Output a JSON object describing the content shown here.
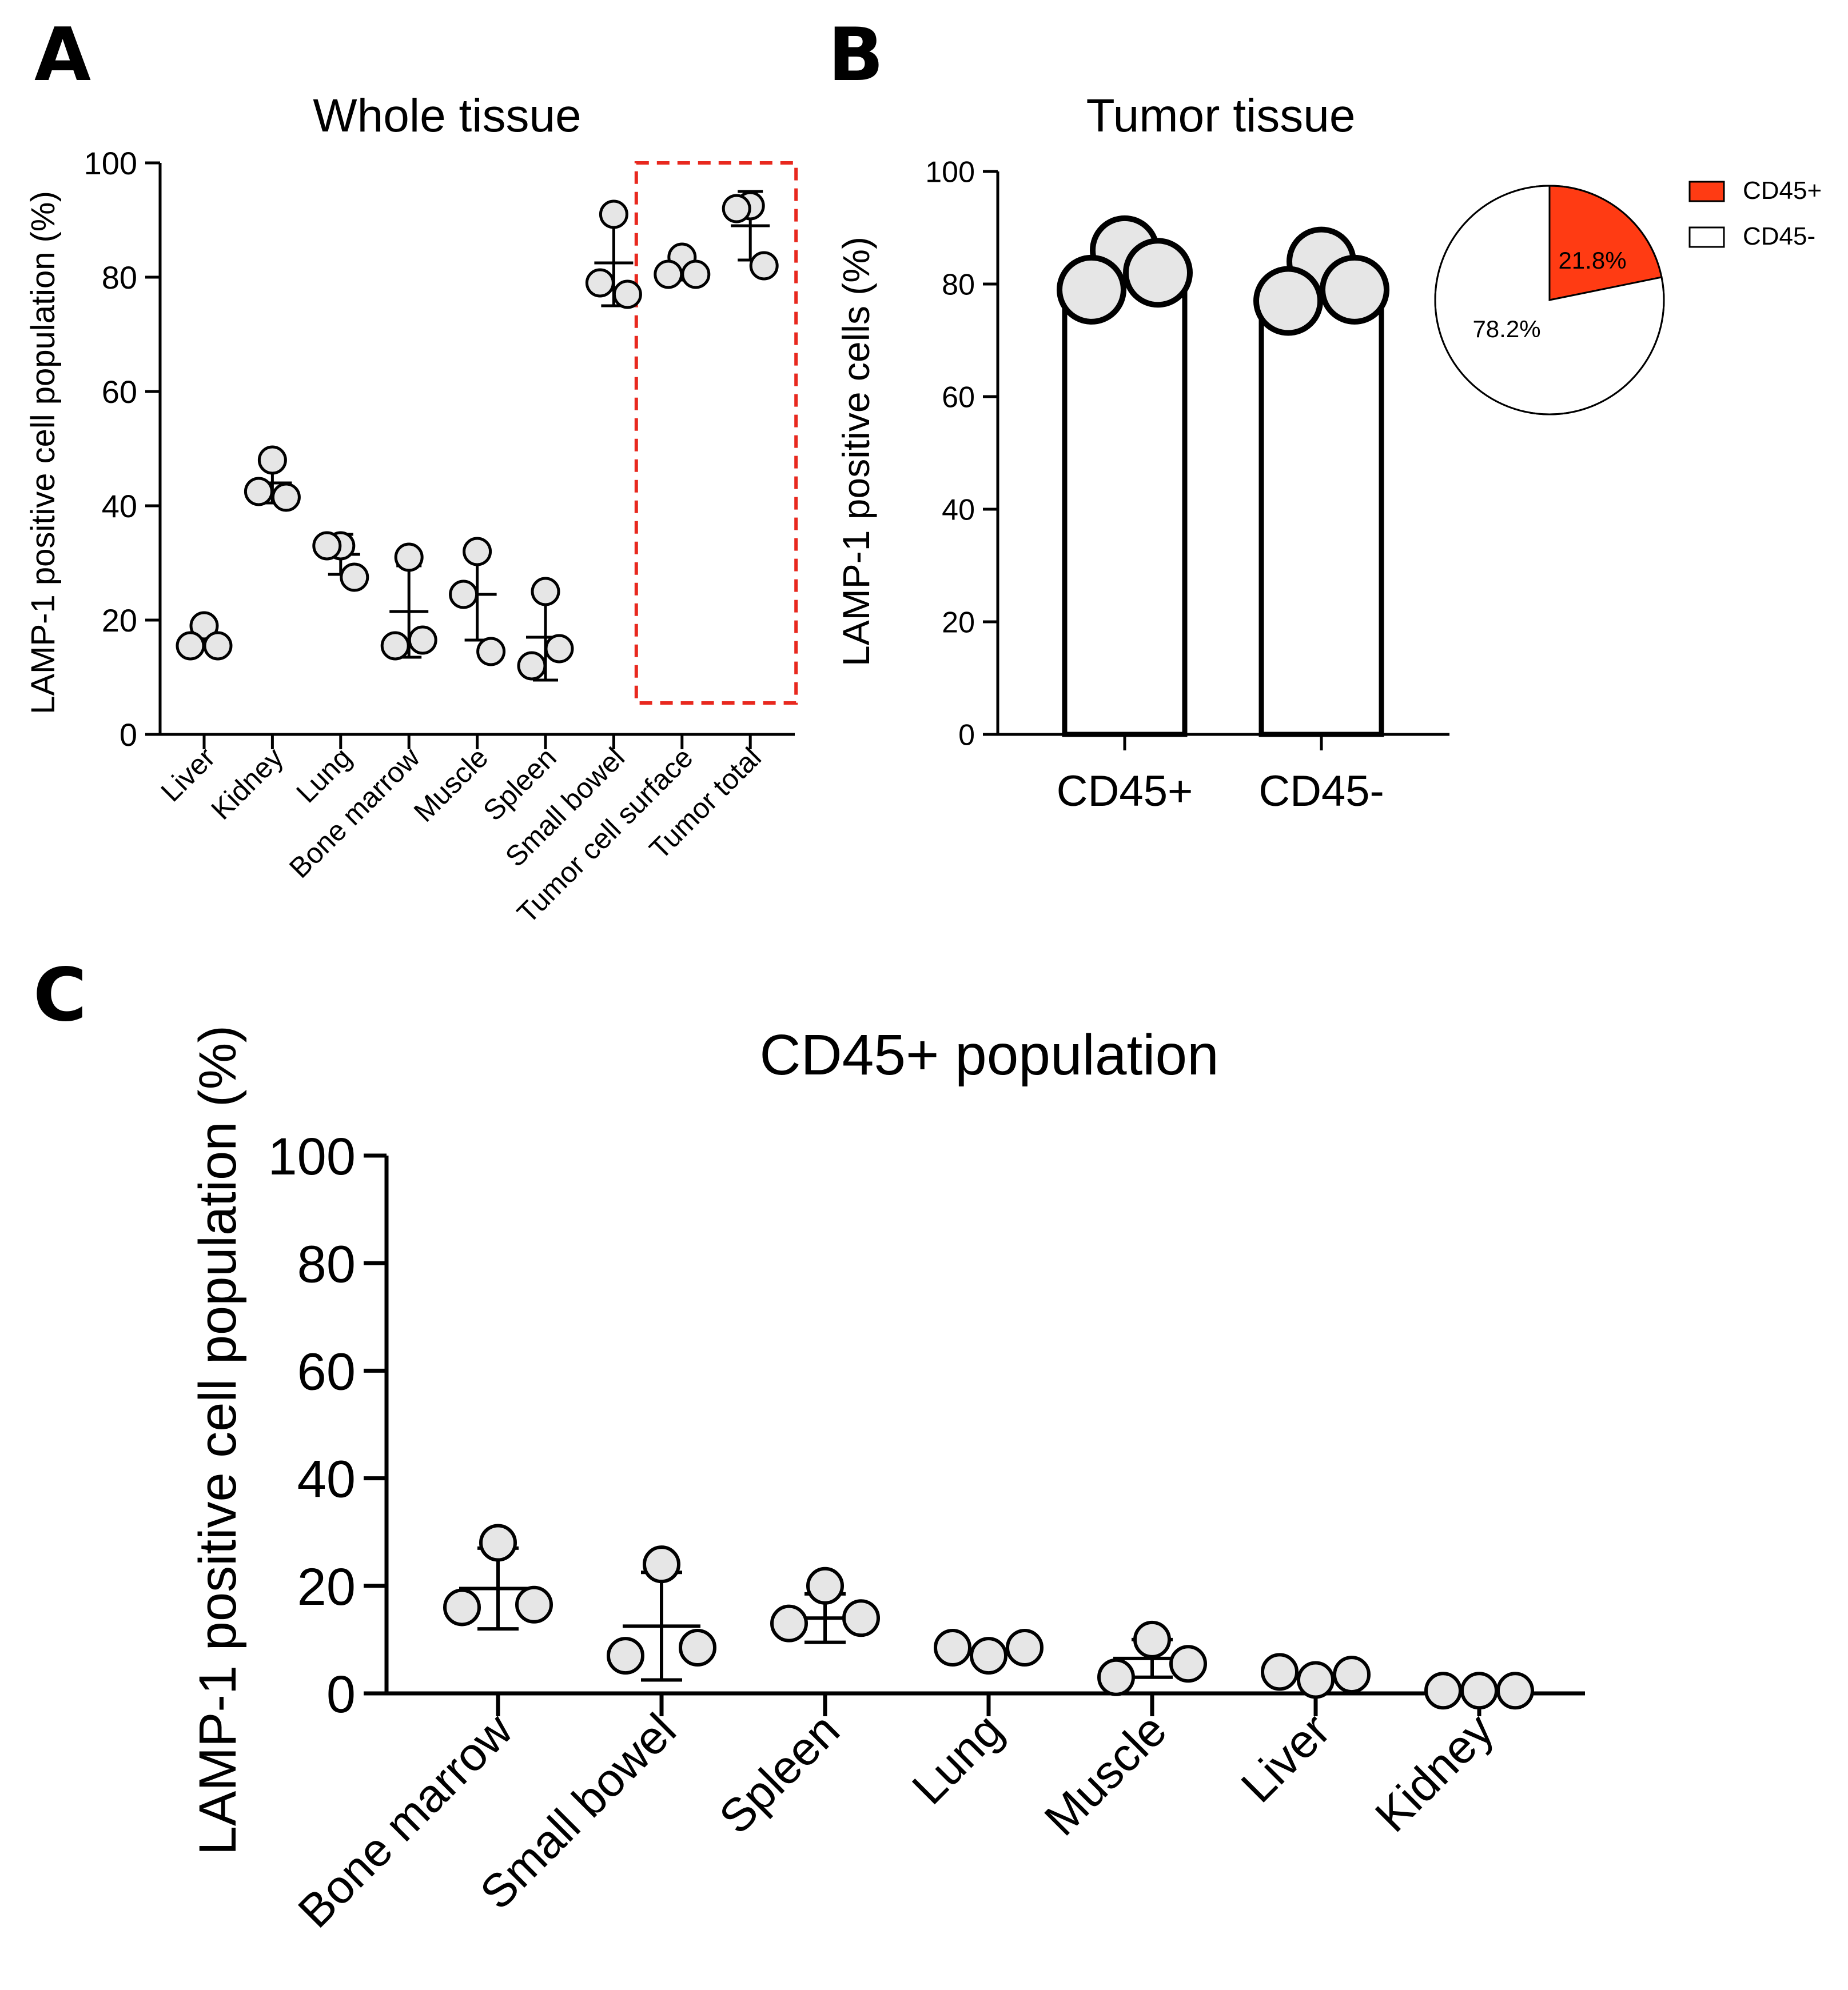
{
  "colors": {
    "axis": "#000000",
    "dot_fill": "#e6e6e6",
    "dot_stroke": "#000000",
    "highlight_box": "#e8281e",
    "pie_cd45_pos": "#ff3b13",
    "pie_cd45_neg": "#ffffff"
  },
  "chart_data": [
    {
      "panel": "A",
      "type": "scatter",
      "title": "Whole tissue",
      "ylabel": "LAMP-1 positive cell population (%)",
      "xlabel": "",
      "ylim": [
        0,
        100
      ],
      "yticks": [
        "0",
        "20",
        "40",
        "60",
        "80",
        "100"
      ],
      "categories": [
        "Liver",
        "Kidney",
        "Lung",
        "Bone marrow",
        "Muscle",
        "Spleen",
        "Small bowel",
        "Tumor cell surface",
        "Tumor total"
      ],
      "points": [
        [
          19,
          15.5,
          15.5
        ],
        [
          48,
          42.5,
          41.5
        ],
        [
          33,
          33,
          27.5
        ],
        [
          31,
          15.5,
          16.5
        ],
        [
          32,
          24.5,
          14.5
        ],
        [
          25,
          12,
          15
        ],
        [
          91,
          79,
          77
        ],
        [
          83.5,
          80.5,
          80.5
        ],
        [
          92.5,
          92,
          82
        ]
      ],
      "mean": [
        17,
        44,
        31.5,
        21.5,
        24.5,
        17,
        82.5,
        81.5,
        89
      ],
      "sd": [
        2,
        3.5,
        3.5,
        8,
        8,
        7.5,
        7.5,
        2,
        6
      ],
      "highlight": [
        "Tumor cell surface",
        "Tumor total"
      ]
    },
    {
      "panel": "B",
      "type": "bar",
      "title": "Tumor tissue",
      "ylabel": "LAMP-1 positive cells (%)",
      "xlabel": "",
      "ylim": [
        0,
        100
      ],
      "yticks": [
        "0",
        "20",
        "40",
        "60",
        "80",
        "100"
      ],
      "categories": [
        "CD45+",
        "CD45-"
      ],
      "values": [
        81,
        79
      ],
      "points": [
        [
          86,
          79,
          82
        ],
        [
          84,
          77,
          79
        ]
      ]
    },
    {
      "panel": "B-inset",
      "type": "pie",
      "labels": [
        "CD45+",
        "CD45-"
      ],
      "values": [
        21.8,
        78.2
      ],
      "value_labels": [
        "21.8%",
        "78.2%"
      ],
      "legend": [
        "CD45+",
        "CD45-"
      ],
      "legend_position": "right"
    },
    {
      "panel": "C",
      "type": "scatter",
      "title": "CD45+ population",
      "ylabel": "LAMP-1 positive cell population (%)",
      "xlabel": "",
      "ylim": [
        0,
        100
      ],
      "yticks": [
        "0",
        "20",
        "40",
        "60",
        "80",
        "100"
      ],
      "categories": [
        "Bone marrow",
        "Small bowel",
        "Spleen",
        "Lung",
        "Muscle",
        "Liver",
        "Kidney"
      ],
      "points": [
        [
          28,
          16,
          16.5
        ],
        [
          24,
          7,
          8.5
        ],
        [
          20,
          13,
          14
        ],
        [
          7,
          8.5,
          8.5
        ],
        [
          10,
          3,
          5.5
        ],
        [
          2.5,
          4,
          3.5
        ],
        [
          0.5,
          0.5,
          0.5
        ]
      ],
      "mean": [
        19.5,
        12.5,
        14,
        null,
        6.5,
        null,
        null
      ],
      "sd": [
        7.5,
        10,
        4.5,
        null,
        3.5,
        null,
        null
      ]
    }
  ],
  "panel_labels": [
    "A",
    "B",
    "C"
  ]
}
